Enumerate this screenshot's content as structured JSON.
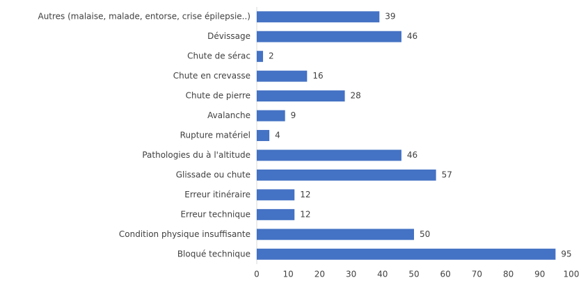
{
  "chart_data": {
    "type": "bar",
    "orientation": "horizontal",
    "categories": [
      "Autres (malaise, malade, entorse, crise épilepsie..)",
      "Dévissage",
      "Chute de sérac",
      "Chute en crevasse",
      "Chute de pierre",
      "Avalanche",
      "Rupture matériel",
      "Pathologies du à l'altitude",
      "Glissade ou chute",
      "Erreur itinéraire",
      "Erreur technique",
      "Condition physique insuffisante",
      "Bloqué technique"
    ],
    "values": [
      39,
      46,
      2,
      16,
      28,
      9,
      4,
      46,
      57,
      12,
      12,
      50,
      95
    ],
    "color": "#4472c4",
    "xlim": [
      0,
      100
    ],
    "xticks": [
      0,
      10,
      20,
      30,
      40,
      50,
      60,
      70,
      80,
      90,
      100
    ],
    "grid": false
  }
}
